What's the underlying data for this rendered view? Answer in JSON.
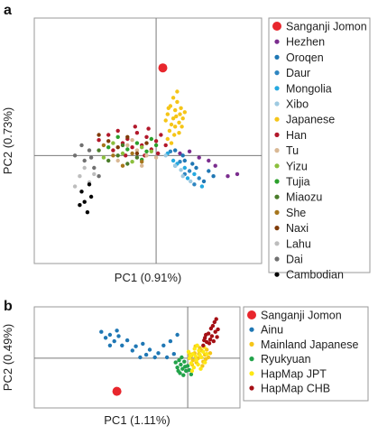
{
  "chart_data": [
    {
      "panel_label": "a",
      "type": "scatter",
      "xlabel": "PC1 (0.91%)",
      "ylabel": "PC2 (0.73%)",
      "grid": false,
      "legend_position": "right",
      "series": [
        {
          "name": "Sanganji Jomon",
          "color": "#e8262d",
          "marker": "large",
          "points": [
            [
              0.07,
              0.85
            ]
          ]
        },
        {
          "name": "Hezhen",
          "color": "#7b2d8e",
          "points": [
            [
              0.25,
              0.02
            ],
            [
              0.45,
              -0.02
            ],
            [
              0.62,
              -0.1
            ],
            [
              0.75,
              -0.2
            ],
            [
              0.85,
              -0.18
            ],
            [
              0.55,
              -0.05
            ],
            [
              0.35,
              0.04
            ]
          ]
        },
        {
          "name": "Oroqen",
          "color": "#1f77b4",
          "points": [
            [
              0.2,
              0.05
            ],
            [
              0.3,
              -0.05
            ],
            [
              0.42,
              -0.12
            ],
            [
              0.55,
              -0.15
            ],
            [
              0.5,
              -0.25
            ],
            [
              0.38,
              -0.08
            ],
            [
              0.6,
              -0.2
            ],
            [
              0.28,
              0.0
            ]
          ]
        },
        {
          "name": "Daur",
          "color": "#2e86c1",
          "points": [
            [
              0.15,
              0.04
            ],
            [
              0.25,
              -0.06
            ],
            [
              0.35,
              -0.15
            ],
            [
              0.45,
              -0.22
            ],
            [
              0.3,
              -0.18
            ],
            [
              0.4,
              -0.28
            ],
            [
              0.2,
              -0.1
            ]
          ]
        },
        {
          "name": "Mongolia",
          "color": "#25a9e0",
          "points": [
            [
              0.12,
              0.02
            ],
            [
              0.22,
              -0.08
            ],
            [
              0.3,
              -0.12
            ],
            [
              0.4,
              -0.18
            ],
            [
              0.48,
              -0.3
            ],
            [
              0.33,
              -0.22
            ],
            [
              0.18,
              -0.05
            ]
          ]
        },
        {
          "name": "Xibo",
          "color": "#9ecae1",
          "points": [
            [
              0.1,
              0.0
            ],
            [
              0.2,
              -0.1
            ],
            [
              0.28,
              -0.2
            ],
            [
              0.36,
              -0.25
            ],
            [
              0.26,
              -0.14
            ]
          ]
        },
        {
          "name": "Japanese",
          "color": "#f5c518",
          "points": [
            [
              0.12,
              0.4
            ],
            [
              0.15,
              0.48
            ],
            [
              0.18,
              0.36
            ],
            [
              0.2,
              0.44
            ],
            [
              0.22,
              0.52
            ],
            [
              0.25,
              0.4
            ],
            [
              0.16,
              0.3
            ],
            [
              0.24,
              0.32
            ],
            [
              0.14,
              0.24
            ],
            [
              0.2,
              0.28
            ],
            [
              0.26,
              0.46
            ],
            [
              0.28,
              0.36
            ],
            [
              0.18,
              0.56
            ],
            [
              0.22,
              0.62
            ],
            [
              0.19,
              0.2
            ],
            [
              0.12,
              0.16
            ],
            [
              0.24,
              0.22
            ],
            [
              0.1,
              0.34
            ],
            [
              0.3,
              0.42
            ],
            [
              0.16,
              0.12
            ],
            [
              0.21,
              0.38
            ],
            [
              0.27,
              0.28
            ],
            [
              0.13,
              0.46
            ]
          ]
        },
        {
          "name": "Han",
          "color": "#b2182b",
          "points": [
            [
              -0.5,
              0.2
            ],
            [
              -0.4,
              0.24
            ],
            [
              -0.3,
              0.16
            ],
            [
              -0.2,
              0.22
            ],
            [
              -0.1,
              0.18
            ],
            [
              0.0,
              0.14
            ],
            [
              0.05,
              0.2
            ],
            [
              -0.25,
              0.08
            ],
            [
              -0.35,
              0.12
            ],
            [
              -0.15,
              0.1
            ],
            [
              -0.05,
              0.06
            ],
            [
              0.1,
              0.1
            ],
            [
              -0.45,
              0.05
            ],
            [
              -0.6,
              0.15
            ],
            [
              -0.32,
              0.0
            ],
            [
              -0.12,
              0.0
            ],
            [
              0.02,
              0.02
            ],
            [
              -0.22,
              0.28
            ],
            [
              -0.08,
              0.26
            ]
          ]
        },
        {
          "name": "Tu",
          "color": "#d9b894",
          "points": [
            [
              -0.3,
              0.1
            ],
            [
              -0.2,
              0.05
            ],
            [
              -0.1,
              0.0
            ],
            [
              0.0,
              -0.02
            ],
            [
              -0.4,
              -0.05
            ],
            [
              -0.15,
              -0.1
            ],
            [
              -0.25,
              0.15
            ]
          ]
        },
        {
          "name": "Yizu",
          "color": "#8bbf3d",
          "points": [
            [
              -0.45,
              0.12
            ],
            [
              -0.35,
              0.02
            ],
            [
              -0.25,
              -0.06
            ],
            [
              -0.15,
              0.08
            ],
            [
              -0.05,
              0.04
            ],
            [
              -0.55,
              -0.02
            ]
          ]
        },
        {
          "name": "Tujia",
          "color": "#2ca02c",
          "points": [
            [
              -0.4,
              0.18
            ],
            [
              -0.3,
              0.06
            ],
            [
              -0.2,
              0.12
            ],
            [
              -0.1,
              0.04
            ],
            [
              0.0,
              0.1
            ],
            [
              -0.5,
              0.08
            ],
            [
              -0.15,
              -0.04
            ],
            [
              -0.05,
              0.16
            ]
          ]
        },
        {
          "name": "Miaozu",
          "color": "#4a7c2a",
          "points": [
            [
              -0.6,
              0.05
            ],
            [
              -0.5,
              -0.05
            ],
            [
              -0.4,
              0.0
            ],
            [
              -0.3,
              -0.08
            ],
            [
              -0.2,
              -0.02
            ],
            [
              -0.35,
              0.1
            ]
          ]
        },
        {
          "name": "She",
          "color": "#a6761d",
          "points": [
            [
              -0.55,
              0.1
            ],
            [
              -0.45,
              0.0
            ],
            [
              -0.35,
              -0.1
            ],
            [
              -0.25,
              0.02
            ],
            [
              -0.15,
              -0.06
            ]
          ]
        },
        {
          "name": "Naxi",
          "color": "#7f3b08",
          "points": [
            [
              -0.5,
              0.14
            ],
            [
              -0.4,
              0.08
            ],
            [
              -0.3,
              0.18
            ],
            [
              -0.2,
              0.02
            ],
            [
              -0.6,
              0.2
            ],
            [
              -0.1,
              0.12
            ]
          ]
        },
        {
          "name": "Lahu",
          "color": "#bdbdbd",
          "points": [
            [
              -0.8,
              -0.2
            ],
            [
              -0.7,
              -0.26
            ],
            [
              -0.75,
              -0.12
            ],
            [
              -0.85,
              -0.3
            ],
            [
              -0.65,
              -0.18
            ]
          ]
        },
        {
          "name": "Dai",
          "color": "#707070",
          "points": [
            [
              -0.75,
              -0.05
            ],
            [
              -0.65,
              -0.12
            ],
            [
              -0.7,
              0.05
            ],
            [
              -0.6,
              -0.2
            ],
            [
              -0.85,
              0.0
            ],
            [
              -0.78,
              0.1
            ],
            [
              -0.68,
              -0.02
            ]
          ]
        },
        {
          "name": "Cambodian",
          "color": "#000000",
          "points": [
            [
              -0.78,
              -0.35
            ],
            [
              -0.75,
              -0.45
            ],
            [
              -0.7,
              -0.28
            ],
            [
              -0.72,
              -0.55
            ],
            [
              -0.68,
              -0.4
            ],
            [
              -0.8,
              -0.48
            ]
          ]
        }
      ]
    },
    {
      "panel_label": "b",
      "type": "scatter",
      "xlabel": "PC1 (1.11%)",
      "ylabel": "PC2 (0.49%)",
      "grid": false,
      "legend_position": "right",
      "series": [
        {
          "name": "Sanganji Jomon",
          "color": "#e8262d",
          "marker": "large",
          "points": [
            [
              -0.82,
              -0.78
            ]
          ]
        },
        {
          "name": "Ainu",
          "color": "#1f77b4",
          "points": [
            [
              -1.0,
              0.62
            ],
            [
              -0.95,
              0.48
            ],
            [
              -0.9,
              0.55
            ],
            [
              -0.85,
              0.4
            ],
            [
              -0.8,
              0.52
            ],
            [
              -0.76,
              0.3
            ],
            [
              -0.7,
              0.42
            ],
            [
              -0.64,
              0.18
            ],
            [
              -0.6,
              0.28
            ],
            [
              -0.55,
              0.02
            ],
            [
              -0.52,
              0.34
            ],
            [
              -0.48,
              0.08
            ],
            [
              -0.44,
              0.2
            ],
            [
              -0.38,
              0.02
            ],
            [
              -0.34,
              0.12
            ],
            [
              -0.28,
              0.3
            ],
            [
              -0.24,
              0.02
            ],
            [
              -0.2,
              0.4
            ],
            [
              -0.16,
              0.1
            ],
            [
              -0.12,
              0.55
            ],
            [
              -0.9,
              0.3
            ],
            [
              -0.82,
              0.65
            ]
          ]
        },
        {
          "name": "Mainland Japanese",
          "color": "#f5c518",
          "points": [
            [
              0.04,
              0.05
            ],
            [
              0.08,
              0.12
            ],
            [
              0.12,
              0.0
            ],
            [
              0.16,
              0.18
            ],
            [
              0.1,
              -0.1
            ],
            [
              0.2,
              0.08
            ],
            [
              0.06,
              -0.05
            ],
            [
              0.14,
              0.24
            ],
            [
              0.18,
              -0.08
            ],
            [
              0.22,
              0.2
            ],
            [
              0.02,
              0.1
            ],
            [
              0.24,
              0.02
            ],
            [
              0.09,
              0.28
            ],
            [
              0.17,
              -0.18
            ],
            [
              0.26,
              0.12
            ],
            [
              0.05,
              -0.15
            ],
            [
              0.13,
              0.1
            ],
            [
              0.21,
              -0.02
            ]
          ]
        },
        {
          "name": "Ryukyuan",
          "color": "#22a34a",
          "points": [
            [
              -0.1,
              -0.05
            ],
            [
              -0.08,
              -0.15
            ],
            [
              -0.06,
              -0.25
            ],
            [
              -0.04,
              -0.08
            ],
            [
              -0.02,
              -0.3
            ],
            [
              0.0,
              -0.18
            ],
            [
              -0.12,
              -0.22
            ],
            [
              -0.09,
              -0.35
            ],
            [
              -0.05,
              -0.4
            ],
            [
              0.02,
              -0.28
            ],
            [
              -0.14,
              -0.1
            ],
            [
              -0.07,
              0.02
            ],
            [
              0.04,
              -0.38
            ],
            [
              -0.11,
              -0.3
            ],
            [
              -0.03,
              -0.2
            ]
          ]
        },
        {
          "name": "HapMap JPT",
          "color": "#fde814",
          "points": [
            [
              0.02,
              0.0
            ],
            [
              0.06,
              0.1
            ],
            [
              0.1,
              -0.05
            ],
            [
              0.14,
              0.08
            ],
            [
              0.18,
              0.15
            ],
            [
              0.04,
              -0.12
            ],
            [
              0.08,
              0.22
            ],
            [
              0.12,
              -0.15
            ],
            [
              0.16,
              0.02
            ],
            [
              0.2,
              -0.1
            ],
            [
              0.01,
              0.15
            ],
            [
              0.11,
              0.3
            ],
            [
              0.15,
              -0.25
            ],
            [
              0.07,
              -0.22
            ],
            [
              0.19,
              0.26
            ],
            [
              0.03,
              0.06
            ],
            [
              0.13,
              0.18
            ],
            [
              0.09,
              0.04
            ],
            [
              0.22,
              0.1
            ],
            [
              0.05,
              -0.3
            ]
          ]
        },
        {
          "name": "HapMap CHB",
          "color": "#a50f15",
          "points": [
            [
              0.18,
              0.3
            ],
            [
              0.22,
              0.38
            ],
            [
              0.26,
              0.44
            ],
            [
              0.2,
              0.48
            ],
            [
              0.28,
              0.52
            ],
            [
              0.24,
              0.58
            ],
            [
              0.3,
              0.4
            ],
            [
              0.32,
              0.62
            ],
            [
              0.27,
              0.7
            ],
            [
              0.34,
              0.5
            ],
            [
              0.21,
              0.55
            ],
            [
              0.29,
              0.76
            ],
            [
              0.31,
              0.85
            ],
            [
              0.25,
              0.35
            ],
            [
              0.35,
              0.68
            ],
            [
              0.19,
              0.42
            ],
            [
              0.33,
              0.92
            ]
          ]
        }
      ]
    }
  ]
}
